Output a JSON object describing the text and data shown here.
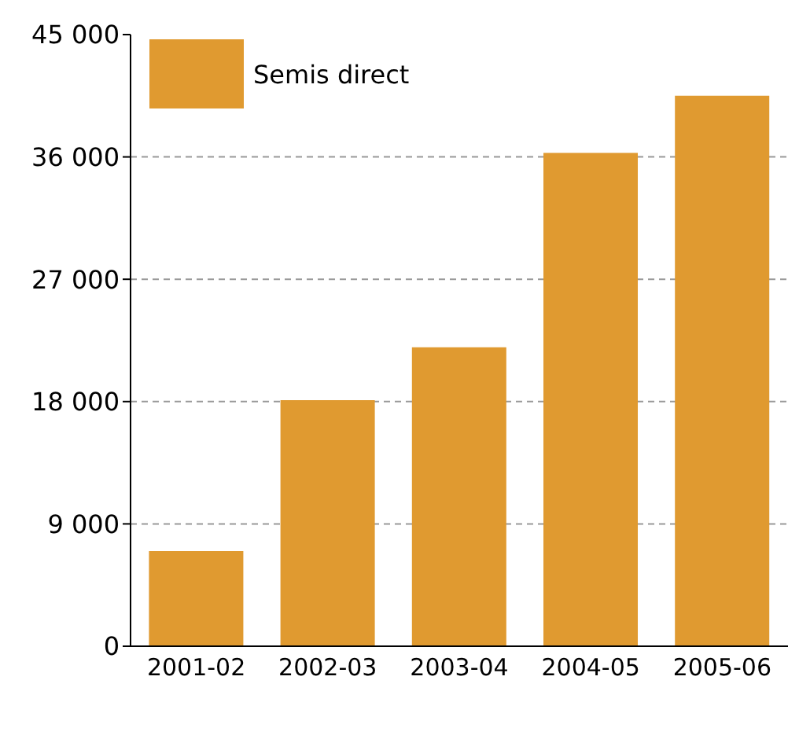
{
  "chart_data": {
    "type": "bar",
    "categories": [
      "2001-02",
      "2002-03",
      "2003-04",
      "2004-05",
      "2005-06"
    ],
    "series": [
      {
        "name": "Semis direct",
        "color": "#e09a30",
        "values": [
          7000,
          18100,
          22000,
          36300,
          40500
        ]
      }
    ],
    "ylim": [
      0,
      45000
    ],
    "yticks": [
      0,
      {
        "value": 9000,
        "label": "9 000"
      },
      {
        "value": 18000,
        "label": "18 000"
      },
      {
        "value": 27000,
        "label": "27 000"
      },
      {
        "value": 36000,
        "label": "36 000"
      },
      {
        "value": 45000,
        "label": "45 000"
      }
    ],
    "grid": "y",
    "legend": "top left"
  }
}
